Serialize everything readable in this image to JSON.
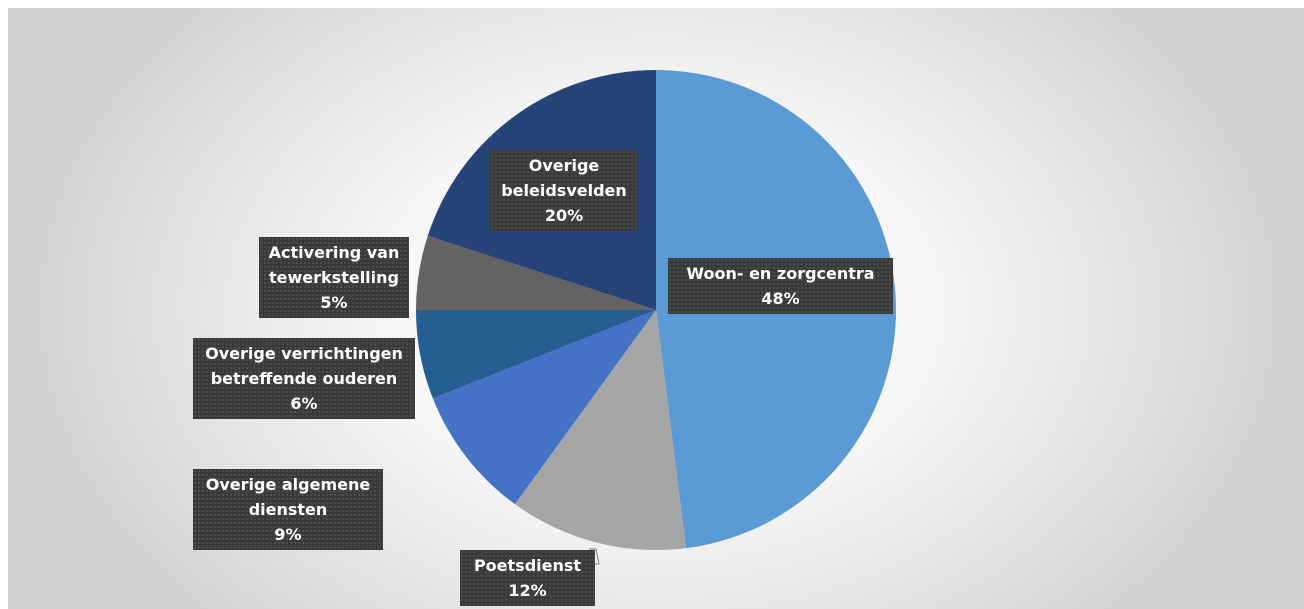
{
  "chart_data": {
    "type": "pie",
    "start_angle_deg": 0,
    "direction": "clockwise",
    "slices": [
      {
        "name": "Woon- en zorgcentra",
        "label_lines": [
          "Woon- en zorgcentra",
          "48%"
        ],
        "value": 48,
        "color": "#5b9bd5"
      },
      {
        "name": "Poetsdienst",
        "label_lines": [
          "Poetsdienst",
          "12%"
        ],
        "value": 12,
        "color": "#a5a5a5"
      },
      {
        "name": "Overige algemene diensten",
        "label_lines": [
          "Overige algemene",
          "diensten",
          "9%"
        ],
        "value": 9,
        "color": "#4472c4"
      },
      {
        "name": "Overige verrichtingen betreffende ouderen",
        "label_lines": [
          "Overige verrichtingen",
          "betreffende ouderen",
          "6%"
        ],
        "value": 6,
        "color": "#255e91"
      },
      {
        "name": "Activering van tewerkstelling",
        "label_lines": [
          "Activering van",
          "tewerkstelling",
          "5%"
        ],
        "value": 5,
        "color": "#636363"
      },
      {
        "name": "Overige beleidsvelden",
        "label_lines": [
          "Overige",
          "beleidsvelden",
          "20%"
        ],
        "value": 20,
        "color": "#264478"
      }
    ]
  }
}
